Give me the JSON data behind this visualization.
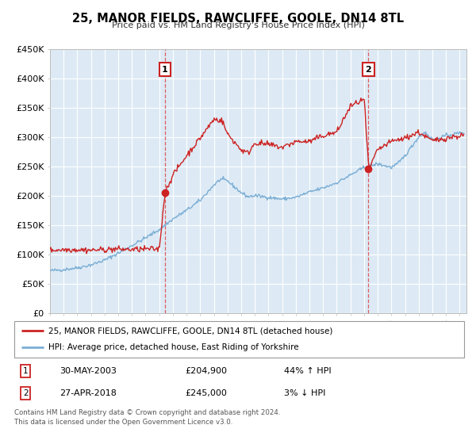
{
  "title": "25, MANOR FIELDS, RAWCLIFFE, GOOLE, DN14 8TL",
  "subtitle": "Price paid vs. HM Land Registry's House Price Index (HPI)",
  "ylim": [
    0,
    450000
  ],
  "xlim_start": 1995.0,
  "xlim_end": 2025.5,
  "yticks": [
    0,
    50000,
    100000,
    150000,
    200000,
    250000,
    300000,
    350000,
    400000,
    450000
  ],
  "ytick_labels": [
    "£0",
    "£50K",
    "£100K",
    "£150K",
    "£200K",
    "£250K",
    "£300K",
    "£350K",
    "£400K",
    "£450K"
  ],
  "xticks": [
    1995,
    1996,
    1997,
    1998,
    1999,
    2000,
    2001,
    2002,
    2003,
    2004,
    2005,
    2006,
    2007,
    2008,
    2009,
    2010,
    2011,
    2012,
    2013,
    2014,
    2015,
    2016,
    2017,
    2018,
    2019,
    2020,
    2021,
    2022,
    2023,
    2024,
    2025
  ],
  "hpi_color": "#7aadd4",
  "price_color": "#cc2222",
  "dashed_color": "#dd4444",
  "bg_color": "#ddeaf5",
  "sale1_x": 2003.41,
  "sale1_y": 204900,
  "sale1_label": "1",
  "sale1_date": "30-MAY-2003",
  "sale1_price": "£204,900",
  "sale1_hpi": "44% ↑ HPI",
  "sale2_x": 2018.32,
  "sale2_y": 245000,
  "sale2_label": "2",
  "sale2_date": "27-APR-2018",
  "sale2_price": "£245,000",
  "sale2_hpi": "3% ↓ HPI",
  "legend_label_price": "25, MANOR FIELDS, RAWCLIFFE, GOOLE, DN14 8TL (detached house)",
  "legend_label_hpi": "HPI: Average price, detached house, East Riding of Yorkshire",
  "footer": "Contains HM Land Registry data © Crown copyright and database right 2024.\nThis data is licensed under the Open Government Licence v3.0."
}
